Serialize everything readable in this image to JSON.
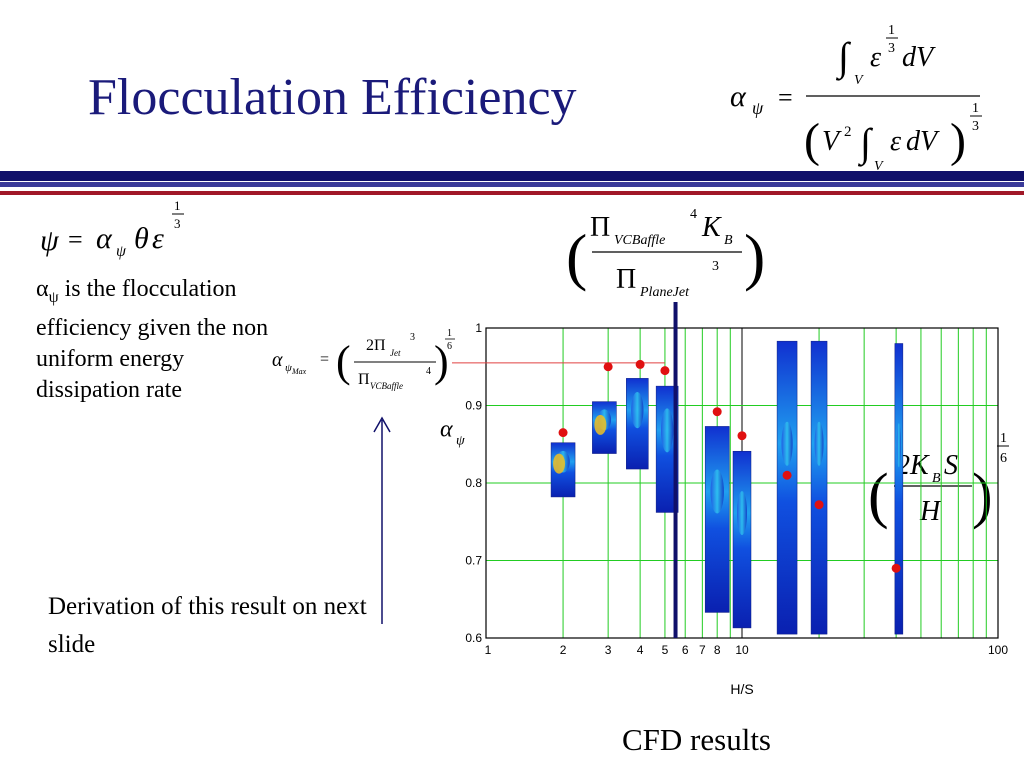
{
  "slide": {
    "title": "Flocculation Efficiency",
    "alpha_symbol": "α",
    "psi_symbol": "ψ",
    "body_text_rest": " is the flocculation efficiency given the non uniform energy dissipation rate",
    "derivation_note": "Derivation of this result on next slide",
    "cfd_caption": "CFD results",
    "colors": {
      "title": "#1a1a7a",
      "band_dark": "#10106a",
      "band_mid": "#3a3a9a",
      "band_red": "#a01828",
      "marker": "#e01010",
      "grid": "#22cc22",
      "arrow": "#10106a",
      "ref_line": "#e04040"
    }
  },
  "formulas": {
    "top_right": {
      "lhs": "α",
      "lhs_sub": "ψ",
      "eq": "=",
      "eps": "ε",
      "exp_num": "1",
      "exp_den": "3",
      "dV": "dV",
      "V": "V",
      "V_exp": "2",
      "exp2_num": "1",
      "exp2_den": "3"
    },
    "psi_def": {
      "lhs": "ψ",
      "eq": "=",
      "alpha": "α",
      "alpha_sub": "ψ",
      "theta": "θ",
      "eps": "ε",
      "exp_num": "1",
      "exp_den": "3"
    },
    "pi_ratio": {
      "pi": "Π",
      "num_sub": "VCBaffle",
      "num_exp": "4",
      "kb": "K",
      "kb_sub": "B",
      "den_sub": "PlaneJet",
      "den_exp": "3"
    },
    "alpha_max": {
      "alpha": "α",
      "sub": "ψ",
      "subsub": "Max",
      "eq": "=",
      "num": "2Π",
      "num_sub": "Jet",
      "num_exp": "3",
      "den": "Π",
      "den_sub": "VCBaffle",
      "den_exp": "4",
      "exp_num": "1",
      "exp_den": "6"
    },
    "kbs": {
      "num": "2K",
      "num_sub": "B",
      "num_s": "S",
      "den": "H",
      "exp_num": "1",
      "exp_den": "6"
    }
  },
  "chart_data": {
    "type": "scatter",
    "title": "",
    "xlabel": "H/S",
    "ylabel": "α",
    "ylabel_sub": "ψ",
    "x_scale": "log",
    "xlim": [
      1,
      100
    ],
    "ylim": [
      0.6,
      1.0
    ],
    "grid": true,
    "y_ticks": [
      "0.6",
      "0.7",
      "0.8",
      "0.9",
      "1"
    ],
    "x_tick_labels": [
      {
        "x": 1,
        "label": "1"
      },
      {
        "x": 2,
        "label": "2"
      },
      {
        "x": 3,
        "label": "3"
      },
      {
        "x": 4,
        "label": "4"
      },
      {
        "x": 5,
        "label": "5"
      },
      {
        "x": 6,
        "label": "6"
      },
      {
        "x": 7,
        "label": "7"
      },
      {
        "x": 8,
        "label": "8"
      },
      {
        "x": 10,
        "label": "10"
      },
      {
        "x": 100,
        "label": "100"
      }
    ],
    "points": [
      {
        "x": 2.0,
        "y": 0.865
      },
      {
        "x": 3.0,
        "y": 0.95
      },
      {
        "x": 4.0,
        "y": 0.953
      },
      {
        "x": 5.0,
        "y": 0.945
      },
      {
        "x": 8.0,
        "y": 0.892
      },
      {
        "x": 10.0,
        "y": 0.861
      },
      {
        "x": 15.0,
        "y": 0.81
      },
      {
        "x": 20.0,
        "y": 0.772
      },
      {
        "x": 40.0,
        "y": 0.69
      }
    ],
    "reference_line_y": 0.955,
    "vertical_marker_x": 5.5
  }
}
